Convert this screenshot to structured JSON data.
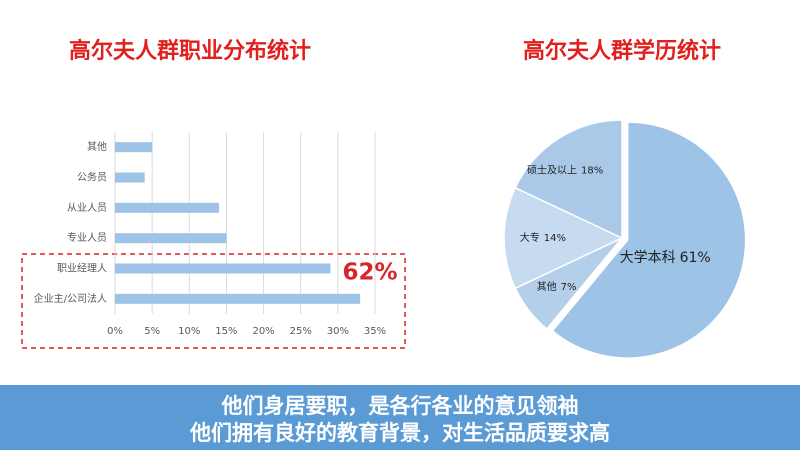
{
  "chart_data": [
    {
      "type": "bar",
      "orientation": "horizontal",
      "title": "高尔夫人群职业分布统计",
      "categories": [
        "其他",
        "公务员",
        "从业人员",
        "专业人员",
        "职业经理人",
        "企业主/公司法人"
      ],
      "values": [
        5,
        4,
        14,
        15,
        29,
        33
      ],
      "color": "#9dc3e6",
      "xlim": [
        0,
        35
      ],
      "xticks": [
        {
          "value": 0,
          "label": "0%"
        },
        {
          "value": 5,
          "label": "5%"
        },
        {
          "value": 10,
          "label": "10%"
        },
        {
          "value": 15,
          "label": "15%"
        },
        {
          "value": 20,
          "label": "20%"
        },
        {
          "value": 25,
          "label": "25%"
        },
        {
          "value": 30,
          "label": "30%"
        },
        {
          "value": 35,
          "label": "35%"
        }
      ],
      "grid": true,
      "annotation": "62%",
      "annotation_color": "#d9242b"
    },
    {
      "type": "pie",
      "title": "高尔夫人群学历统计",
      "categories": [
        "大学本科",
        "其他",
        "大专",
        "硕士及以上"
      ],
      "values": [
        61,
        7,
        14,
        18
      ],
      "value_labels": [
        "61%",
        "7%",
        "14%",
        "18%"
      ],
      "colors": [
        "#9dc3e6",
        "#b4cfea",
        "#c6dbf0",
        "#aac9e8"
      ]
    }
  ],
  "banner": {
    "lines": [
      "他们身居要职，是各行各业的意见领袖",
      "他们拥有良好的教育背景，对生活品质要求高"
    ]
  }
}
